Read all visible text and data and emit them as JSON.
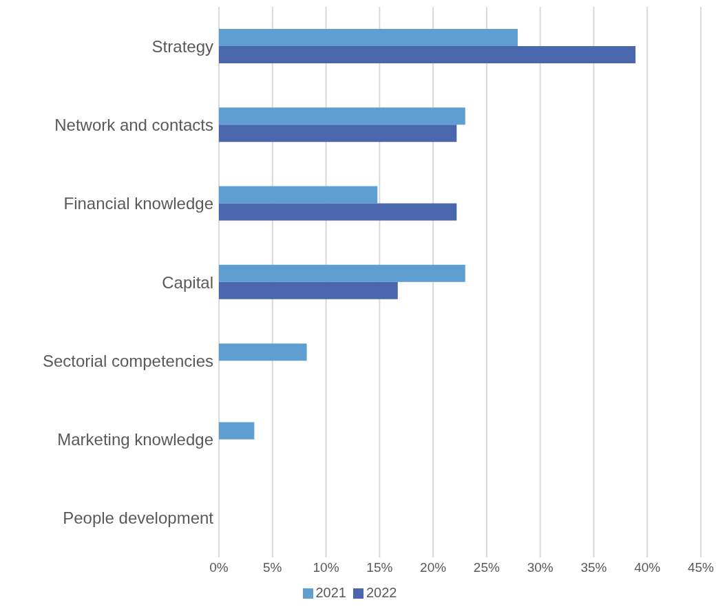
{
  "chart_data": {
    "type": "bar",
    "orientation": "horizontal",
    "categories": [
      "Strategy",
      "Network and contacts",
      "Financial knowledge",
      "Capital",
      "Sectorial competencies",
      "Marketing knowledge",
      "People development"
    ],
    "series": [
      {
        "name": "2021",
        "color": "#5f9ed1",
        "values": [
          27.9,
          23.0,
          14.8,
          23.0,
          8.2,
          3.3,
          0
        ]
      },
      {
        "name": "2022",
        "color": "#4a66ac",
        "values": [
          38.9,
          22.2,
          22.2,
          16.7,
          0,
          0,
          0
        ]
      }
    ],
    "xlim": [
      0,
      45
    ],
    "xticks": [
      {
        "value": 0,
        "label": "0%"
      },
      {
        "value": 5,
        "label": "5%"
      },
      {
        "value": 10,
        "label": "10%"
      },
      {
        "value": 15,
        "label": "15%"
      },
      {
        "value": 20,
        "label": "20%"
      },
      {
        "value": 25,
        "label": "25%"
      },
      {
        "value": 30,
        "label": "30%"
      },
      {
        "value": 35,
        "label": "35%"
      },
      {
        "value": 40,
        "label": "40%"
      },
      {
        "value": 45,
        "label": "45%"
      }
    ],
    "grid": "x",
    "legend": "bottom"
  }
}
